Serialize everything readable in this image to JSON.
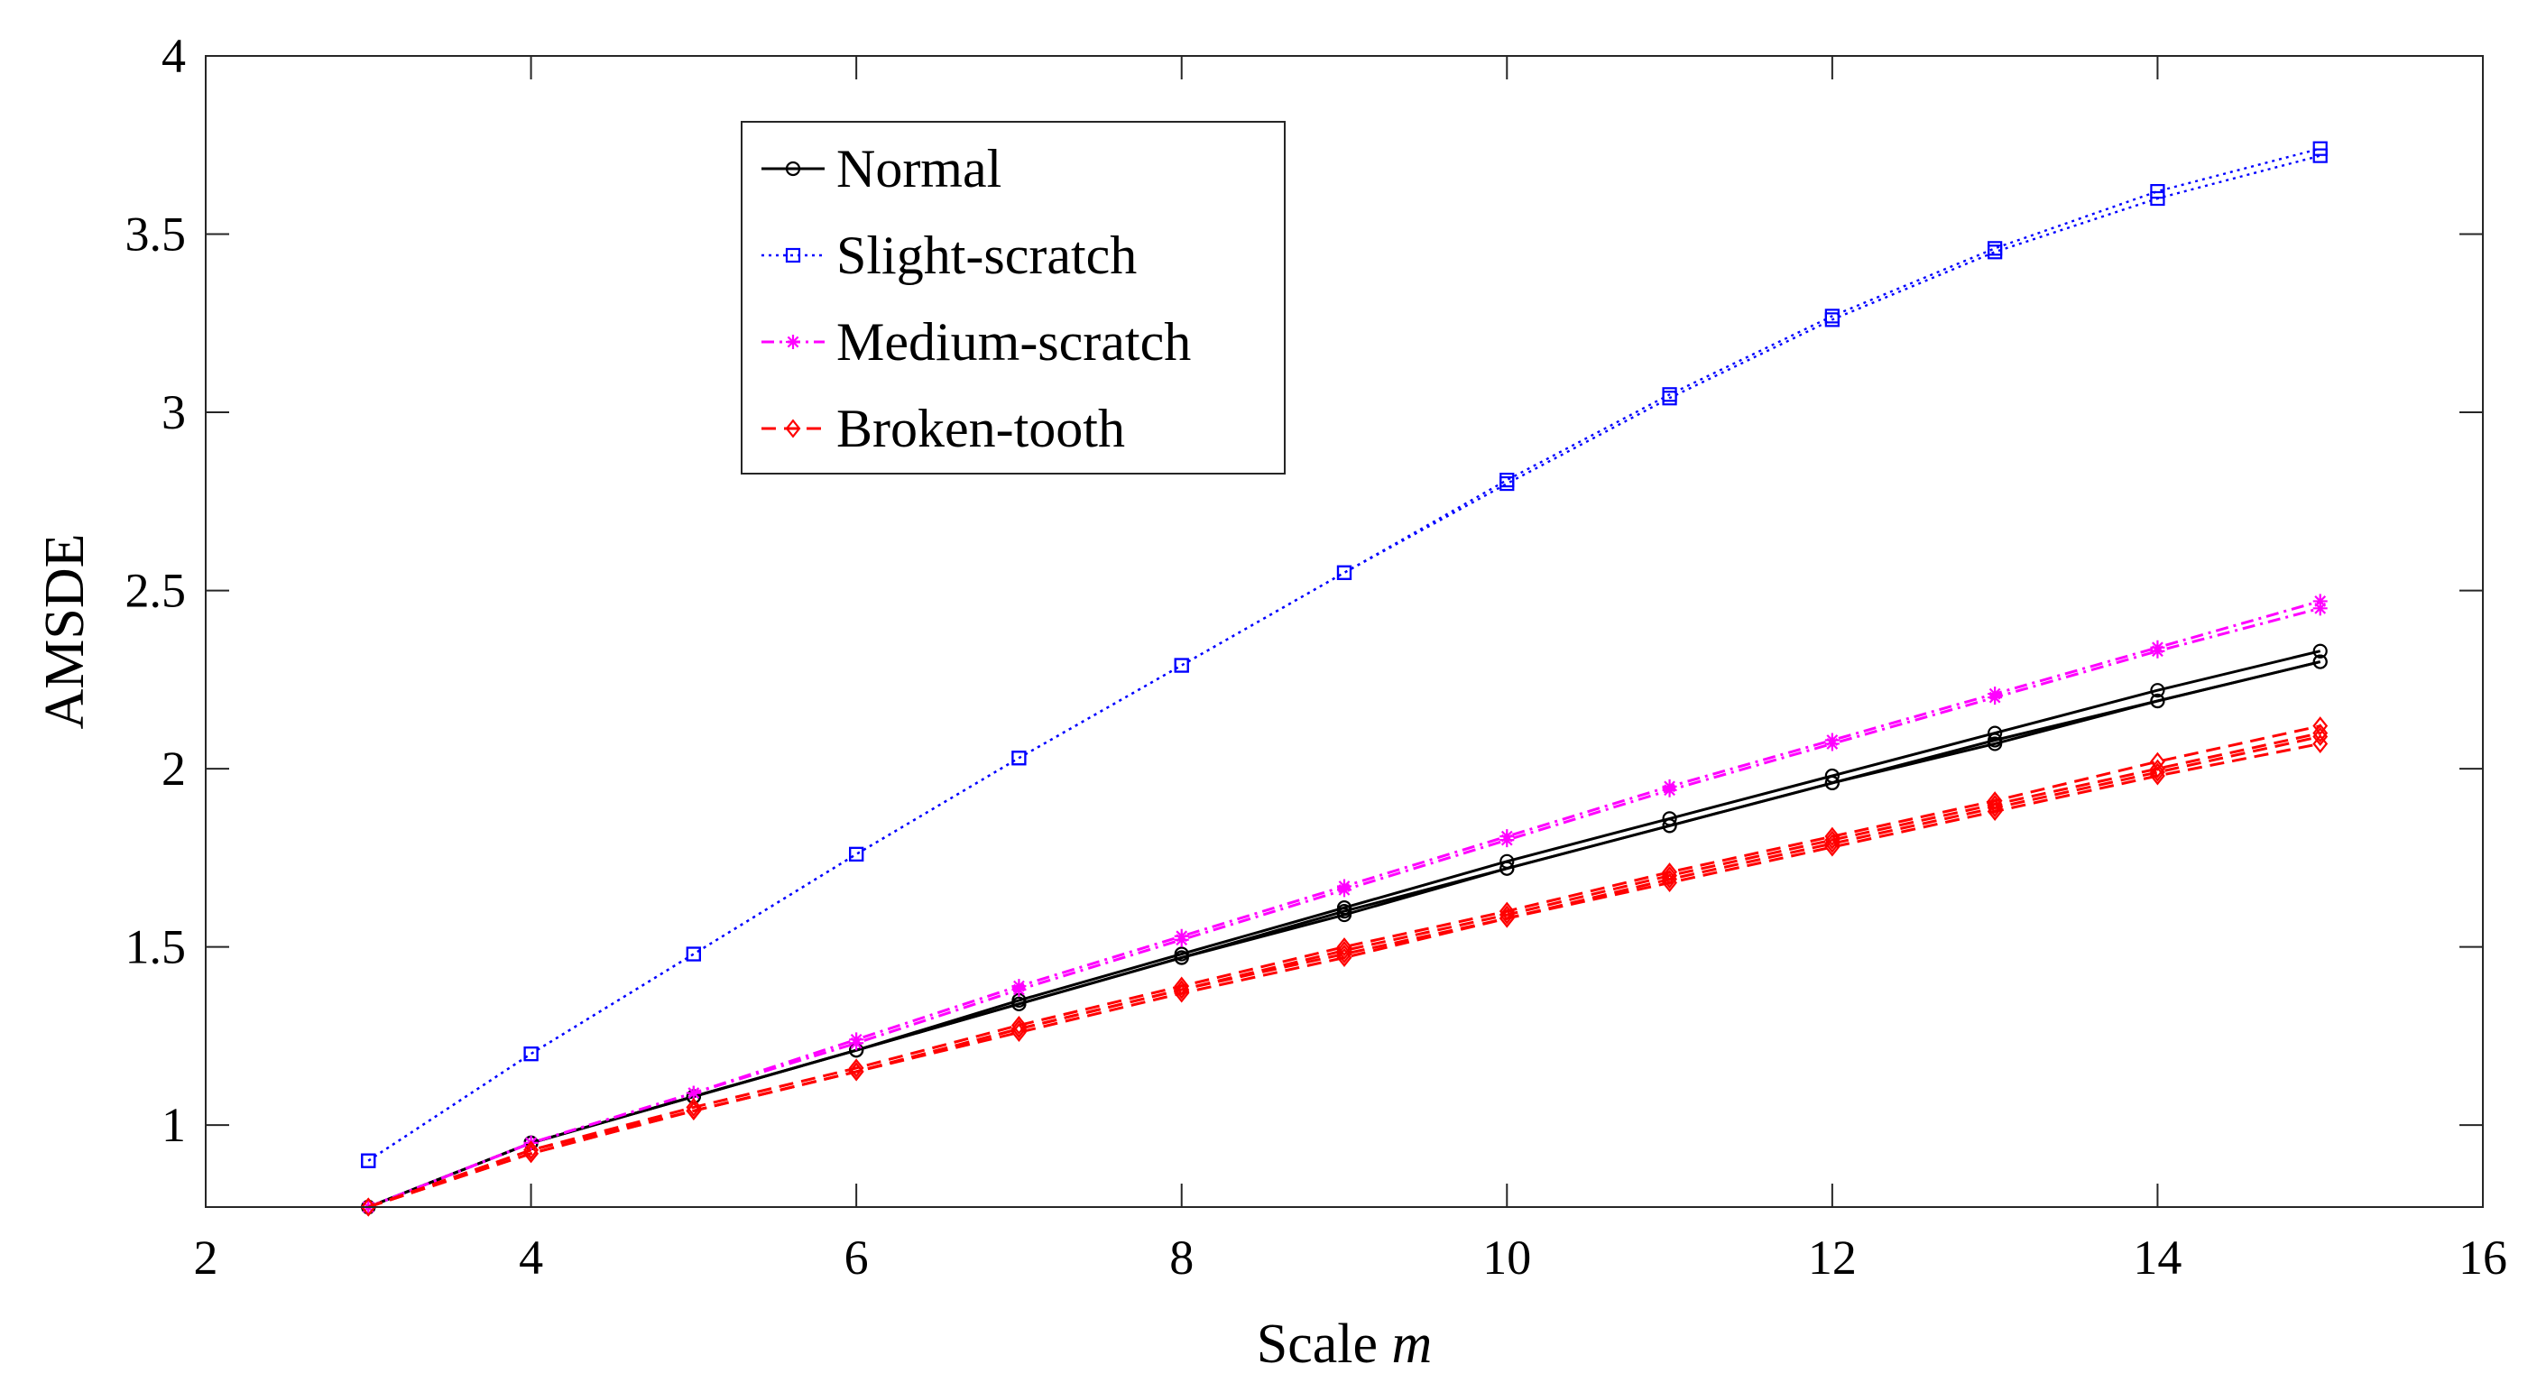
{
  "chart_data": {
    "type": "line",
    "title": "",
    "xlabel": "Scale",
    "xlabel_var": "m",
    "ylabel": "AMSDE",
    "xlim": [
      2,
      16
    ],
    "ylim": [
      0.77,
      4
    ],
    "xticks": [
      2,
      4,
      6,
      8,
      10,
      12,
      14,
      16
    ],
    "xtick_labels": [
      "2",
      "4",
      "6",
      "8",
      "10",
      "12",
      "14",
      "16"
    ],
    "yticks": [
      1,
      1.5,
      2,
      2.5,
      3,
      3.5,
      4
    ],
    "ytick_labels": [
      "1",
      "1.5",
      "2",
      "2.5",
      "3",
      "3.5",
      "4"
    ],
    "grid": false,
    "legend_position": "top-left",
    "x": [
      3,
      4,
      5,
      6,
      7,
      8,
      9,
      10,
      11,
      12,
      13,
      14,
      15
    ],
    "series": [
      {
        "name": "Normal",
        "color": "#000000",
        "marker": "circle",
        "line_style": "solid",
        "lines": [
          [
            0.77,
            0.95,
            1.08,
            1.21,
            1.35,
            1.48,
            1.61,
            1.74,
            1.86,
            1.98,
            2.1,
            2.22,
            2.33
          ],
          [
            0.77,
            0.95,
            1.08,
            1.21,
            1.34,
            1.47,
            1.6,
            1.72,
            1.84,
            1.96,
            2.08,
            2.19,
            2.3
          ],
          [
            0.77,
            0.95,
            1.08,
            1.21,
            1.34,
            1.47,
            1.59,
            1.72,
            1.84,
            1.96,
            2.07,
            2.19,
            2.3
          ]
        ]
      },
      {
        "name": "Slight-scratch",
        "color": "#0000ff",
        "marker": "square",
        "line_style": "dotted",
        "lines": [
          [
            0.9,
            1.2,
            1.48,
            1.76,
            2.03,
            2.29,
            2.55,
            2.81,
            3.05,
            3.27,
            3.46,
            3.62,
            3.74
          ],
          [
            0.9,
            1.2,
            1.48,
            1.76,
            2.03,
            2.29,
            2.55,
            2.8,
            3.04,
            3.26,
            3.45,
            3.6,
            3.72
          ]
        ]
      },
      {
        "name": "Medium-scratch",
        "color": "#ff00ff",
        "marker": "star",
        "line_style": "dashdot",
        "lines": [
          [
            0.77,
            0.95,
            1.09,
            1.24,
            1.39,
            1.53,
            1.67,
            1.81,
            1.95,
            2.08,
            2.21,
            2.34,
            2.47
          ],
          [
            0.77,
            0.95,
            1.09,
            1.23,
            1.38,
            1.52,
            1.66,
            1.8,
            1.94,
            2.07,
            2.2,
            2.33,
            2.45
          ]
        ]
      },
      {
        "name": "Broken-tooth",
        "color": "#ff0000",
        "marker": "diamond",
        "line_style": "dashed",
        "lines": [
          [
            0.77,
            0.93,
            1.05,
            1.16,
            1.28,
            1.39,
            1.5,
            1.6,
            1.71,
            1.81,
            1.91,
            2.02,
            2.12
          ],
          [
            0.77,
            0.93,
            1.04,
            1.15,
            1.27,
            1.38,
            1.49,
            1.59,
            1.7,
            1.8,
            1.9,
            2.0,
            2.1
          ],
          [
            0.77,
            0.92,
            1.04,
            1.15,
            1.27,
            1.38,
            1.48,
            1.58,
            1.69,
            1.79,
            1.89,
            1.99,
            2.09
          ],
          [
            0.77,
            0.92,
            1.04,
            1.15,
            1.26,
            1.37,
            1.47,
            1.58,
            1.68,
            1.78,
            1.88,
            1.98,
            2.07
          ]
        ]
      }
    ]
  }
}
